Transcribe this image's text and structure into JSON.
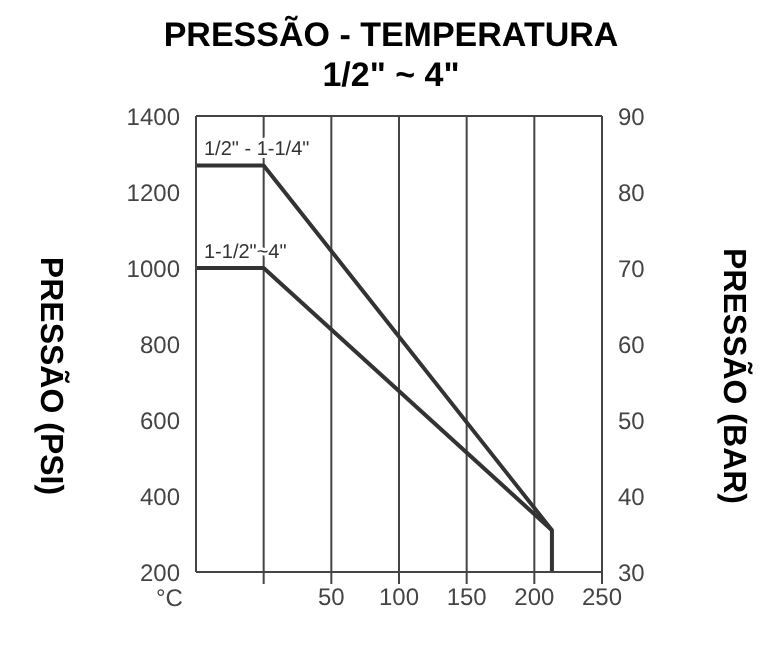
{
  "chart_data": {
    "type": "line",
    "title": "PRESSÃO - TEMPERATURA",
    "subtitle": "1/2\" ~ 4\"",
    "xlabel": "°C",
    "ylabel": "PRESSÃO (PSI)",
    "y2label": "PRESSÃO (BAR)",
    "series": [
      {
        "name": "1/2\" - 1-1/4\"",
        "color": "#333333",
        "x": [
          -50,
          0,
          213,
          213
        ],
        "values": [
          1270,
          1270,
          310,
          200
        ]
      },
      {
        "name": "1-1/2\"~4\"",
        "color": "#333333",
        "x": [
          -50,
          0,
          213
        ],
        "values": [
          1000,
          1000,
          310
        ]
      }
    ],
    "xlim": [
      -50,
      250
    ],
    "xticks": [
      {
        "value": 0,
        "label": null
      },
      50,
      100,
      150,
      200,
      250
    ],
    "ylim": [
      200,
      1400
    ],
    "yticks": [
      200,
      400,
      600,
      800,
      1000,
      1200,
      1400
    ],
    "y2lim": [
      30,
      90
    ],
    "y2ticks": [
      30,
      40,
      50,
      60,
      70,
      80,
      90
    ],
    "grid": true,
    "legend": false,
    "marker": "none",
    "line_style": "solid"
  }
}
